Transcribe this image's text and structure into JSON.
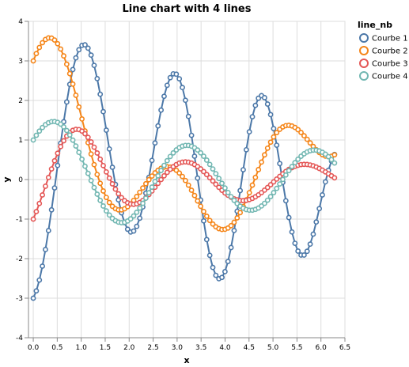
{
  "chart_data": {
    "type": "line",
    "title": "Line chart with 4 lines",
    "xlabel": "x",
    "ylabel": "y",
    "xlim": [
      -0.1,
      6.5
    ],
    "ylim": [
      -4,
      4
    ],
    "x_ticks": [
      "0.0",
      "0.5",
      "1.0",
      "1.5",
      "2.0",
      "2.5",
      "3.0",
      "3.5",
      "4.0",
      "4.5",
      "5.0",
      "5.5",
      "6.0",
      "6.5"
    ],
    "y_ticks": [
      "-4",
      "-3",
      "-2",
      "-1",
      "0",
      "1",
      "2",
      "3",
      "4"
    ],
    "grid": true,
    "markers": "hollow-circle",
    "legend": {
      "title": "line_nb",
      "position": "right"
    },
    "x": [
      0.0,
      0.0635,
      0.127,
      0.1904,
      0.2539,
      0.3174,
      0.3808,
      0.4443,
      0.5078,
      0.5712,
      0.6347,
      0.6982,
      0.7616,
      0.8251,
      0.8886,
      0.952,
      1.0155,
      1.079,
      1.1424,
      1.2059,
      1.2694,
      1.3328,
      1.3963,
      1.4598,
      1.5232,
      1.5867,
      1.6502,
      1.7136,
      1.7771,
      1.8406,
      1.904,
      1.9675,
      2.031,
      2.0944,
      2.1579,
      2.2214,
      2.2848,
      2.3483,
      2.4118,
      2.4752,
      2.5387,
      2.6022,
      2.6656,
      2.7291,
      2.7926,
      2.856,
      2.9195,
      2.983,
      3.0464,
      3.1099,
      3.1734,
      3.2368,
      3.3003,
      3.3638,
      3.4272,
      3.4907,
      3.5542,
      3.6176,
      3.6811,
      3.7446,
      3.808,
      3.8715,
      3.935,
      3.9984,
      4.0619,
      4.1254,
      4.1888,
      4.2523,
      4.3158,
      4.3792,
      4.4427,
      4.5062,
      4.5696,
      4.6331,
      4.6966,
      4.76,
      4.8235,
      4.887,
      4.9504,
      5.0139,
      5.0774,
      5.1408,
      5.2043,
      5.2678,
      5.3312,
      5.3947,
      5.4582,
      5.5216,
      5.5851,
      5.6486,
      5.712,
      5.7755,
      5.839,
      5.9024,
      5.9659,
      6.0294,
      6.0928,
      6.1563,
      6.2198,
      6.2832
    ],
    "series": [
      {
        "name": "Courbe 1",
        "color": "#4c78a8",
        "values": [
          -3.0,
          -2.815,
          -2.542,
          -2.19,
          -1.769,
          -1.29,
          -0.766,
          -0.212,
          0.357,
          0.92,
          1.461,
          1.961,
          2.406,
          2.782,
          3.077,
          3.282,
          3.392,
          3.406,
          3.322,
          3.147,
          2.887,
          2.552,
          2.157,
          1.717,
          1.249,
          0.773,
          0.31,
          -0.124,
          -0.513,
          -0.841,
          -1.092,
          -1.256,
          -1.327,
          -1.302,
          -1.184,
          -0.977,
          -0.693,
          -0.344,
          0.054,
          0.483,
          0.925,
          1.356,
          1.756,
          2.105,
          2.383,
          2.576,
          2.673,
          2.664,
          2.548,
          2.327,
          2.005,
          1.597,
          1.118,
          0.59,
          0.036,
          -0.518,
          -1.045,
          -1.518,
          -1.917,
          -2.223,
          -2.422,
          -2.508,
          -2.475,
          -2.328,
          -2.072,
          -1.719,
          -1.288,
          -0.8,
          -0.279,
          0.248,
          0.753,
          1.207,
          1.588,
          1.875,
          2.056,
          2.121,
          2.071,
          1.909,
          1.642,
          1.288,
          0.868,
          0.404,
          -0.073,
          -0.537,
          -0.961,
          -1.325,
          -1.612,
          -1.809,
          -1.909,
          -1.909,
          -1.814,
          -1.633,
          -1.38,
          -1.073,
          -0.735,
          -0.389,
          -0.058,
          0.234,
          0.469,
          0.634
        ]
      },
      {
        "name": "Courbe 2",
        "color": "#f58518",
        "values": [
          3.0,
          3.185,
          3.34,
          3.46,
          3.541,
          3.581,
          3.577,
          3.528,
          3.435,
          3.3,
          3.126,
          2.917,
          2.678,
          2.414,
          2.131,
          1.835,
          1.532,
          1.229,
          0.932,
          0.646,
          0.377,
          0.128,
          -0.095,
          -0.289,
          -0.452,
          -0.581,
          -0.676,
          -0.738,
          -0.767,
          -0.767,
          -0.739,
          -0.687,
          -0.615,
          -0.527,
          -0.428,
          -0.322,
          -0.213,
          -0.106,
          -0.004,
          0.088,
          0.169,
          0.235,
          0.284,
          0.314,
          0.325,
          0.315,
          0.285,
          0.235,
          0.165,
          0.078,
          -0.025,
          -0.142,
          -0.27,
          -0.404,
          -0.541,
          -0.677,
          -0.807,
          -0.928,
          -1.035,
          -1.125,
          -1.195,
          -1.241,
          -1.263,
          -1.258,
          -1.226,
          -1.166,
          -1.081,
          -0.97,
          -0.837,
          -0.684,
          -0.514,
          -0.332,
          -0.141,
          0.055,
          0.251,
          0.442,
          0.624,
          0.793,
          0.945,
          1.077,
          1.186,
          1.271,
          1.33,
          1.363,
          1.371,
          1.355,
          1.317,
          1.261,
          1.19,
          1.107,
          1.018,
          0.926,
          0.837,
          0.755,
          0.684,
          0.629,
          0.593,
          0.579,
          0.589,
          0.625
        ]
      },
      {
        "name": "Courbe 3",
        "color": "#e45756",
        "values": [
          -1.0,
          -0.81,
          -0.605,
          -0.39,
          -0.169,
          0.052,
          0.268,
          0.474,
          0.664,
          0.834,
          0.98,
          1.099,
          1.188,
          1.245,
          1.27,
          1.263,
          1.225,
          1.159,
          1.066,
          0.951,
          0.818,
          0.671,
          0.514,
          0.353,
          0.193,
          0.037,
          -0.109,
          -0.243,
          -0.36,
          -0.458,
          -0.534,
          -0.588,
          -0.619,
          -0.627,
          -0.613,
          -0.579,
          -0.527,
          -0.459,
          -0.379,
          -0.29,
          -0.195,
          -0.097,
          0.0,
          0.094,
          0.181,
          0.259,
          0.325,
          0.378,
          0.417,
          0.44,
          0.447,
          0.439,
          0.416,
          0.379,
          0.33,
          0.27,
          0.201,
          0.126,
          0.046,
          -0.036,
          -0.118,
          -0.197,
          -0.271,
          -0.339,
          -0.398,
          -0.448,
          -0.487,
          -0.514,
          -0.53,
          -0.534,
          -0.526,
          -0.506,
          -0.476,
          -0.436,
          -0.387,
          -0.331,
          -0.268,
          -0.201,
          -0.131,
          -0.059,
          0.012,
          0.08,
          0.145,
          0.204,
          0.256,
          0.3,
          0.335,
          0.361,
          0.378,
          0.384,
          0.381,
          0.368,
          0.347,
          0.317,
          0.281,
          0.239,
          0.193,
          0.144,
          0.094,
          0.044
        ]
      },
      {
        "name": "Courbe 4",
        "color": "#72b7b2",
        "values": [
          1.0,
          1.119,
          1.225,
          1.315,
          1.386,
          1.436,
          1.463,
          1.467,
          1.446,
          1.401,
          1.332,
          1.24,
          1.127,
          0.996,
          0.848,
          0.687,
          0.515,
          0.337,
          0.156,
          -0.025,
          -0.202,
          -0.37,
          -0.527,
          -0.669,
          -0.793,
          -0.898,
          -0.981,
          -1.041,
          -1.078,
          -1.091,
          -1.081,
          -1.048,
          -0.994,
          -0.92,
          -0.828,
          -0.721,
          -0.601,
          -0.471,
          -0.333,
          -0.191,
          -0.048,
          0.093,
          0.229,
          0.358,
          0.477,
          0.583,
          0.674,
          0.749,
          0.806,
          0.844,
          0.863,
          0.862,
          0.842,
          0.803,
          0.747,
          0.675,
          0.589,
          0.491,
          0.383,
          0.268,
          0.148,
          0.026,
          -0.096,
          -0.214,
          -0.327,
          -0.432,
          -0.526,
          -0.607,
          -0.674,
          -0.725,
          -0.759,
          -0.775,
          -0.774,
          -0.755,
          -0.72,
          -0.668,
          -0.602,
          -0.522,
          -0.431,
          -0.331,
          -0.224,
          -0.112,
          0.002,
          0.115,
          0.225,
          0.33,
          0.427,
          0.514,
          0.589,
          0.651,
          0.698,
          0.729,
          0.744,
          0.742,
          0.724,
          0.69,
          0.641,
          0.578,
          0.503,
          0.418
        ]
      }
    ]
  }
}
